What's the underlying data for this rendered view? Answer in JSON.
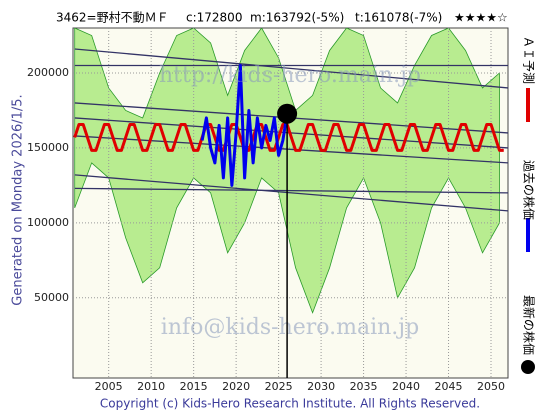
{
  "chart_data": {
    "type": "line",
    "title": "3462=野村不動ＭＦ",
    "close": "c:172800",
    "m": "m:163792(-5%)",
    "t": "t:161078(-7%)",
    "rating": "★★★★☆",
    "generated": "Generated on Monday 2026/1/5.",
    "copyright": "Copyright (c) Kids-Hero Research Institute. All Rights Reserved.",
    "watermarks": [
      "http://kids-hero.main.jp",
      "info@kids-hero.main.jp"
    ],
    "xlim": [
      2000.8,
      2052
    ],
    "ylim": [
      -3500,
      230000
    ],
    "xticks": [
      2005,
      2010,
      2015,
      2020,
      2025,
      2030,
      2035,
      2040,
      2045,
      2050
    ],
    "yticks": [
      50000,
      100000,
      150000,
      200000
    ],
    "grid": true,
    "band": {
      "color": "#a8e878",
      "x": [
        2001,
        2003,
        2005,
        2007,
        2009,
        2011,
        2013,
        2015,
        2017,
        2019,
        2021,
        2023,
        2025,
        2027,
        2029,
        2031,
        2033,
        2035,
        2037,
        2039,
        2041,
        2043,
        2045,
        2047,
        2049,
        2051
      ],
      "upper": [
        230000,
        225000,
        190000,
        175000,
        170000,
        200000,
        225000,
        230000,
        220000,
        185000,
        215000,
        230000,
        210000,
        175000,
        185000,
        215000,
        230000,
        225000,
        190000,
        180000,
        205000,
        225000,
        230000,
        215000,
        190000,
        200000
      ],
      "lower": [
        110000,
        140000,
        130000,
        90000,
        60000,
        70000,
        110000,
        130000,
        120000,
        80000,
        100000,
        130000,
        120000,
        70000,
        40000,
        70000,
        110000,
        130000,
        100000,
        50000,
        70000,
        110000,
        130000,
        110000,
        80000,
        100000
      ]
    },
    "trend_color": "#333366",
    "trend_lines": [
      {
        "x": [
          2001,
          2052
        ],
        "values": [
          216000,
          190000
        ]
      },
      {
        "x": [
          2001,
          2052
        ],
        "values": [
          205000,
          205000
        ]
      },
      {
        "x": [
          2001,
          2052
        ],
        "values": [
          180000,
          160000
        ]
      },
      {
        "x": [
          2001,
          2052
        ],
        "values": [
          170000,
          150000
        ]
      },
      {
        "x": [
          2001,
          2052
        ],
        "values": [
          158000,
          140000
        ]
      },
      {
        "x": [
          2001,
          2052
        ],
        "values": [
          132000,
          108000
        ]
      },
      {
        "x": [
          2001,
          2052
        ],
        "values": [
          123000,
          120000
        ]
      }
    ],
    "series": [
      {
        "name": "ＡＩ予測",
        "color": "#e00000",
        "kind": "line",
        "x": [
          2001,
          2001.5,
          2002,
          2002.5,
          2003,
          2003.5,
          2004,
          2004.5,
          2005,
          2005.5,
          2006,
          2006.5,
          2007,
          2007.5,
          2008,
          2008.5,
          2009,
          2009.5,
          2010,
          2010.5,
          2011,
          2011.5,
          2012,
          2012.5,
          2013,
          2013.5,
          2014,
          2014.5,
          2015,
          2015.5,
          2016,
          2016.5,
          2017,
          2017.5,
          2018,
          2018.5,
          2019,
          2019.5,
          2020,
          2020.5,
          2021,
          2021.5,
          2022,
          2022.5,
          2023,
          2023.5,
          2024,
          2024.5,
          2025,
          2025.5,
          2026,
          2026.5,
          2027,
          2027.5,
          2028,
          2028.5,
          2029,
          2029.5,
          2030,
          2030.5,
          2031,
          2031.5,
          2032,
          2032.5,
          2033,
          2033.5,
          2034,
          2034.5,
          2035,
          2035.5,
          2036,
          2036.5,
          2037,
          2037.5,
          2038,
          2038.5,
          2039,
          2039.5,
          2040,
          2040.5,
          2041,
          2041.5,
          2042,
          2042.5,
          2043,
          2043.5,
          2044,
          2044.5,
          2045,
          2045.5,
          2046,
          2046.5,
          2047,
          2047.5,
          2048,
          2048.5,
          2049,
          2049.5,
          2050,
          2050.5,
          2051,
          2051.5
        ],
        "values": [
          157000,
          165660,
          165660,
          157000,
          148340,
          148340,
          157000,
          165660,
          165660,
          157000,
          148340,
          148340,
          157000,
          165660,
          165660,
          157000,
          148340,
          148340,
          157000,
          165660,
          165660,
          157000,
          148340,
          148340,
          157000,
          165660,
          165660,
          157000,
          148340,
          148340,
          157000,
          165660,
          165660,
          157000,
          148340,
          148340,
          157000,
          165660,
          165660,
          157000,
          148340,
          148340,
          157000,
          165660,
          165660,
          157000,
          148340,
          148340,
          157000,
          165660,
          165660,
          157000,
          148340,
          148340,
          157000,
          165660,
          165660,
          157000,
          148340,
          148340,
          157000,
          165660,
          165660,
          157000,
          148340,
          148340,
          157000,
          165660,
          165660,
          157000,
          148340,
          148340,
          157000,
          165660,
          165660,
          157000,
          148340,
          148340,
          157000,
          165660,
          165660,
          157000,
          148340,
          148340,
          157000,
          165660,
          165660,
          157000,
          148340,
          148340,
          157000,
          165660,
          165660,
          157000,
          148340,
          148340,
          157000,
          165660,
          165660,
          157000,
          148340,
          148340
        ]
      },
      {
        "name": "過去の株価",
        "color": "#0000ee",
        "kind": "line",
        "x": [
          2016,
          2016.5,
          2017,
          2017.5,
          2018,
          2018.5,
          2019,
          2019.5,
          2020,
          2020.5,
          2021,
          2021.5,
          2022,
          2022.5,
          2023,
          2023.5,
          2024,
          2024.5,
          2025,
          2025.5,
          2026
        ],
        "values": [
          155000,
          170000,
          150000,
          140000,
          165000,
          130000,
          170000,
          125000,
          160000,
          205000,
          130000,
          175000,
          140000,
          170000,
          150000,
          165000,
          155000,
          170000,
          145000,
          155000,
          172800
        ]
      },
      {
        "name": "最新の株価",
        "color": "#000000",
        "kind": "point",
        "x": [
          2026
        ],
        "values": [
          172800
        ]
      }
    ]
  }
}
